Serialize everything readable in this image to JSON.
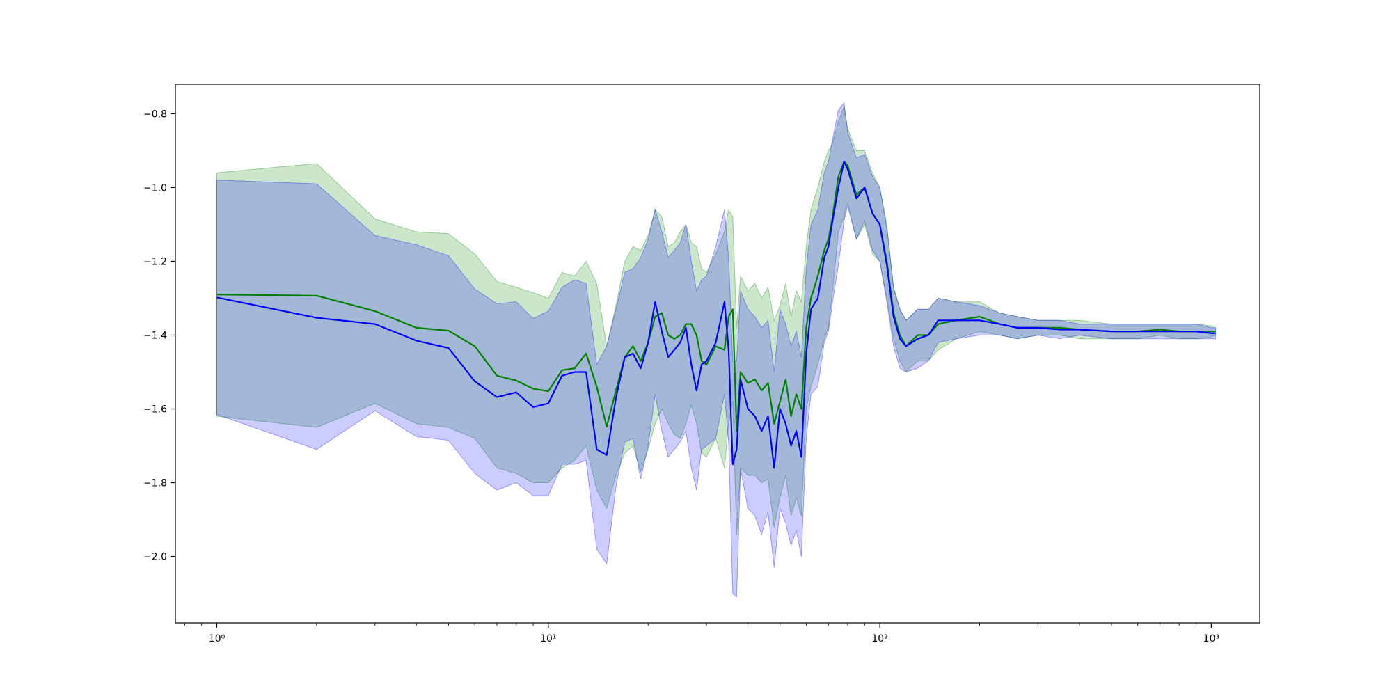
{
  "chart_data": {
    "type": "line",
    "title": "",
    "xlabel": "",
    "ylabel": "",
    "x_scale": "log",
    "xlim": [
      0.75,
      1400
    ],
    "ylim": [
      -2.18,
      -0.72
    ],
    "grid": false,
    "x_ticks": [
      {
        "value": 1,
        "label": "10⁰"
      },
      {
        "value": 10,
        "label": "10¹"
      },
      {
        "value": 100,
        "label": "10²"
      },
      {
        "value": 1000,
        "label": "10³"
      }
    ],
    "y_ticks": [
      {
        "value": -2.0,
        "label": "−2.0"
      },
      {
        "value": -1.8,
        "label": "−1.8"
      },
      {
        "value": -1.6,
        "label": "−1.6"
      },
      {
        "value": -1.4,
        "label": "−1.4"
      },
      {
        "value": -1.2,
        "label": "−1.2"
      },
      {
        "value": -1.0,
        "label": "−1.0"
      },
      {
        "value": -0.8,
        "label": "−0.8"
      }
    ],
    "series": [
      {
        "color": "#008000",
        "band_color": "#008000",
        "band_opacity": 0.2,
        "x": [
          1,
          2,
          3,
          4,
          5,
          6,
          7,
          8,
          9,
          10,
          11,
          12,
          13,
          14,
          15,
          16,
          17,
          18,
          19,
          20,
          21,
          22,
          23,
          24,
          25,
          26,
          27,
          28,
          29,
          30,
          32,
          34,
          35,
          36,
          37,
          38,
          40,
          42,
          44,
          46,
          48,
          50,
          52,
          54,
          56,
          58,
          60,
          62,
          65,
          68,
          70,
          72,
          75,
          78,
          80,
          85,
          90,
          95,
          100,
          105,
          110,
          115,
          120,
          130,
          140,
          150,
          170,
          200,
          230,
          260,
          300,
          350,
          400,
          500,
          600,
          700,
          800,
          900,
          1000,
          1030
        ],
        "y": [
          -1.29,
          -1.293,
          -1.335,
          -1.38,
          -1.388,
          -1.43,
          -1.51,
          -1.523,
          -1.545,
          -1.552,
          -1.495,
          -1.49,
          -1.45,
          -1.54,
          -1.648,
          -1.55,
          -1.46,
          -1.43,
          -1.47,
          -1.42,
          -1.35,
          -1.34,
          -1.4,
          -1.41,
          -1.4,
          -1.37,
          -1.37,
          -1.4,
          -1.47,
          -1.48,
          -1.43,
          -1.44,
          -1.35,
          -1.33,
          -1.66,
          -1.5,
          -1.53,
          -1.52,
          -1.55,
          -1.53,
          -1.64,
          -1.58,
          -1.52,
          -1.62,
          -1.56,
          -1.6,
          -1.38,
          -1.3,
          -1.24,
          -1.17,
          -1.14,
          -1.08,
          -0.97,
          -0.93,
          -0.94,
          -1.02,
          -1.0,
          -1.07,
          -1.1,
          -1.2,
          -1.34,
          -1.4,
          -1.43,
          -1.4,
          -1.4,
          -1.37,
          -1.36,
          -1.35,
          -1.37,
          -1.38,
          -1.38,
          -1.38,
          -1.385,
          -1.39,
          -1.39,
          -1.385,
          -1.39,
          -1.39,
          -1.39,
          -1.39
        ],
        "upper": [
          -0.96,
          -0.935,
          -1.085,
          -1.12,
          -1.125,
          -1.18,
          -1.255,
          -1.27,
          -1.285,
          -1.3,
          -1.23,
          -1.24,
          -1.2,
          -1.26,
          -1.43,
          -1.32,
          -1.2,
          -1.16,
          -1.17,
          -1.13,
          -1.06,
          -1.08,
          -1.16,
          -1.15,
          -1.12,
          -1.1,
          -1.15,
          -1.16,
          -1.22,
          -1.23,
          -1.18,
          -1.12,
          -1.06,
          -1.08,
          -1.38,
          -1.24,
          -1.28,
          -1.26,
          -1.3,
          -1.27,
          -1.36,
          -1.32,
          -1.26,
          -1.35,
          -1.28,
          -1.31,
          -1.16,
          -1.06,
          -1.0,
          -0.93,
          -0.9,
          -0.88,
          -0.82,
          -0.78,
          -0.84,
          -0.9,
          -0.9,
          -0.96,
          -1.0,
          -1.1,
          -1.27,
          -1.33,
          -1.36,
          -1.33,
          -1.33,
          -1.3,
          -1.31,
          -1.31,
          -1.34,
          -1.35,
          -1.36,
          -1.36,
          -1.36,
          -1.37,
          -1.37,
          -1.37,
          -1.37,
          -1.37,
          -1.375,
          -1.38
        ],
        "lower": [
          -1.62,
          -1.65,
          -1.585,
          -1.64,
          -1.65,
          -1.68,
          -1.76,
          -1.775,
          -1.8,
          -1.8,
          -1.76,
          -1.74,
          -1.7,
          -1.82,
          -1.87,
          -1.78,
          -1.72,
          -1.7,
          -1.77,
          -1.71,
          -1.64,
          -1.6,
          -1.64,
          -1.67,
          -1.68,
          -1.64,
          -1.59,
          -1.64,
          -1.72,
          -1.73,
          -1.68,
          -1.76,
          -1.64,
          -1.58,
          -1.94,
          -1.76,
          -1.78,
          -1.78,
          -1.8,
          -1.79,
          -1.92,
          -1.84,
          -1.78,
          -1.89,
          -1.84,
          -1.89,
          -1.6,
          -1.54,
          -1.48,
          -1.41,
          -1.38,
          -1.28,
          -1.12,
          -1.08,
          -1.04,
          -1.14,
          -1.1,
          -1.18,
          -1.2,
          -1.3,
          -1.41,
          -1.47,
          -1.5,
          -1.47,
          -1.47,
          -1.44,
          -1.41,
          -1.39,
          -1.4,
          -1.41,
          -1.4,
          -1.4,
          -1.41,
          -1.41,
          -1.41,
          -1.4,
          -1.41,
          -1.41,
          -1.405,
          -1.4
        ]
      },
      {
        "color": "#0000ff",
        "band_color": "#0000ff",
        "band_opacity": 0.2,
        "x": [
          1,
          2,
          3,
          4,
          5,
          6,
          7,
          8,
          9,
          10,
          11,
          12,
          13,
          14,
          15,
          16,
          17,
          18,
          19,
          20,
          21,
          22,
          23,
          24,
          25,
          26,
          27,
          28,
          29,
          30,
          32,
          34,
          35,
          36,
          37,
          38,
          40,
          42,
          44,
          46,
          48,
          50,
          52,
          54,
          56,
          58,
          60,
          62,
          65,
          68,
          70,
          72,
          75,
          78,
          80,
          85,
          90,
          95,
          100,
          105,
          110,
          115,
          120,
          130,
          140,
          150,
          170,
          200,
          230,
          260,
          300,
          350,
          400,
          500,
          600,
          700,
          800,
          900,
          1000,
          1030
        ],
        "y": [
          -1.298,
          -1.353,
          -1.37,
          -1.415,
          -1.435,
          -1.525,
          -1.568,
          -1.555,
          -1.595,
          -1.585,
          -1.51,
          -1.5,
          -1.5,
          -1.71,
          -1.725,
          -1.57,
          -1.46,
          -1.45,
          -1.49,
          -1.42,
          -1.31,
          -1.39,
          -1.46,
          -1.44,
          -1.42,
          -1.38,
          -1.48,
          -1.55,
          -1.48,
          -1.47,
          -1.42,
          -1.31,
          -1.44,
          -1.75,
          -1.71,
          -1.52,
          -1.6,
          -1.62,
          -1.66,
          -1.62,
          -1.76,
          -1.6,
          -1.64,
          -1.7,
          -1.66,
          -1.73,
          -1.45,
          -1.33,
          -1.3,
          -1.19,
          -1.16,
          -1.09,
          -1.0,
          -0.93,
          -0.95,
          -1.03,
          -1.0,
          -1.07,
          -1.1,
          -1.21,
          -1.35,
          -1.41,
          -1.43,
          -1.41,
          -1.4,
          -1.36,
          -1.36,
          -1.36,
          -1.37,
          -1.38,
          -1.38,
          -1.385,
          -1.385,
          -1.39,
          -1.39,
          -1.39,
          -1.39,
          -1.39,
          -1.395,
          -1.395
        ],
        "upper": [
          -0.98,
          -0.99,
          -1.13,
          -1.155,
          -1.185,
          -1.275,
          -1.315,
          -1.31,
          -1.355,
          -1.335,
          -1.27,
          -1.25,
          -1.26,
          -1.48,
          -1.43,
          -1.33,
          -1.23,
          -1.22,
          -1.19,
          -1.14,
          -1.06,
          -1.12,
          -1.19,
          -1.17,
          -1.15,
          -1.1,
          -1.2,
          -1.28,
          -1.25,
          -1.24,
          -1.16,
          -1.06,
          -1.19,
          -1.47,
          -1.47,
          -1.28,
          -1.33,
          -1.35,
          -1.38,
          -1.36,
          -1.5,
          -1.33,
          -1.37,
          -1.43,
          -1.39,
          -1.46,
          -1.22,
          -1.1,
          -1.06,
          -0.96,
          -0.93,
          -0.87,
          -0.79,
          -0.77,
          -0.85,
          -0.92,
          -0.91,
          -0.97,
          -1.0,
          -1.11,
          -1.27,
          -1.33,
          -1.36,
          -1.33,
          -1.33,
          -1.3,
          -1.31,
          -1.32,
          -1.34,
          -1.35,
          -1.36,
          -1.36,
          -1.37,
          -1.37,
          -1.37,
          -1.37,
          -1.37,
          -1.37,
          -1.38,
          -1.38
        ],
        "lower": [
          -1.615,
          -1.71,
          -1.605,
          -1.675,
          -1.685,
          -1.775,
          -1.82,
          -1.8,
          -1.835,
          -1.835,
          -1.75,
          -1.75,
          -1.74,
          -1.98,
          -2.02,
          -1.81,
          -1.69,
          -1.68,
          -1.79,
          -1.7,
          -1.56,
          -1.66,
          -1.73,
          -1.71,
          -1.69,
          -1.66,
          -1.76,
          -1.82,
          -1.71,
          -1.7,
          -1.68,
          -1.56,
          -1.69,
          -2.1,
          -2.11,
          -1.76,
          -1.87,
          -1.89,
          -1.94,
          -1.88,
          -2.03,
          -1.87,
          -1.91,
          -1.97,
          -1.93,
          -2.0,
          -1.68,
          -1.56,
          -1.54,
          -1.42,
          -1.39,
          -1.31,
          -1.21,
          -1.09,
          -1.05,
          -1.14,
          -1.09,
          -1.17,
          -1.2,
          -1.31,
          -1.43,
          -1.49,
          -1.5,
          -1.49,
          -1.47,
          -1.42,
          -1.41,
          -1.4,
          -1.4,
          -1.41,
          -1.4,
          -1.41,
          -1.4,
          -1.41,
          -1.41,
          -1.41,
          -1.41,
          -1.41,
          -1.41,
          -1.41
        ]
      }
    ]
  }
}
